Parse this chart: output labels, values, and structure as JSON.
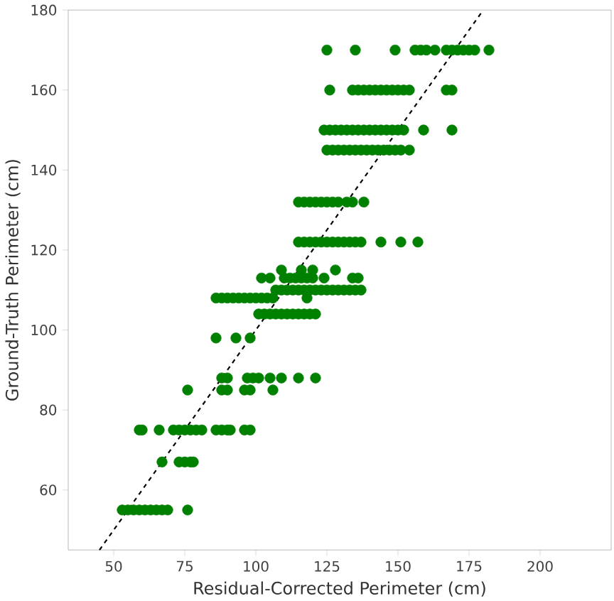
{
  "chart_data": {
    "type": "scatter",
    "xlabel": "Residual-Corrected Perimeter (cm)",
    "ylabel": "Ground-Truth Perimeter (cm)",
    "xlim": [
      34,
      225
    ],
    "ylim": [
      45,
      180
    ],
    "xticks": [
      50,
      75,
      100,
      125,
      150,
      175,
      200
    ],
    "yticks": [
      60,
      80,
      100,
      120,
      140,
      160,
      180
    ],
    "grid": false,
    "series": [
      {
        "color": "#008000",
        "marker": "circle",
        "x": [
          53,
          55,
          57,
          59,
          61,
          63,
          65,
          67,
          69,
          76,
          67,
          73,
          75,
          77,
          78,
          59,
          60,
          66,
          71,
          73,
          75,
          77,
          79,
          81,
          86,
          88,
          90,
          91,
          96,
          98,
          76,
          88,
          90,
          96,
          98,
          106,
          88,
          90,
          97,
          99,
          101,
          105,
          109,
          115,
          121,
          86,
          93,
          98,
          101,
          103,
          105,
          107,
          109,
          111,
          113,
          115,
          117,
          119,
          121,
          86,
          88,
          90,
          92,
          94,
          96,
          98,
          100,
          102,
          104,
          106,
          118,
          107,
          109,
          111,
          113,
          115,
          117,
          119,
          121,
          123,
          125,
          127,
          129,
          131,
          133,
          135,
          137,
          102,
          105,
          110,
          112,
          114,
          116,
          118,
          120,
          124,
          134,
          136,
          109,
          116,
          120,
          128,
          115,
          117,
          119,
          121,
          123,
          125,
          127,
          129,
          131,
          133,
          135,
          137,
          144,
          151,
          157,
          115,
          117,
          119,
          121,
          123,
          125,
          127,
          129,
          132,
          134,
          138,
          125,
          127,
          129,
          131,
          133,
          135,
          137,
          139,
          141,
          143,
          145,
          147,
          149,
          151,
          154,
          124,
          126,
          128,
          130,
          132,
          134,
          136,
          138,
          140,
          142,
          144,
          146,
          148,
          150,
          152,
          159,
          169,
          126,
          134,
          136,
          138,
          140,
          142,
          144,
          146,
          148,
          150,
          152,
          154,
          167,
          169,
          125,
          135,
          149,
          156,
          158,
          160,
          163,
          167,
          169,
          171,
          173,
          175,
          177,
          182
        ],
        "values": [
          55,
          55,
          55,
          55,
          55,
          55,
          55,
          55,
          55,
          55,
          67,
          67,
          67,
          67,
          67,
          75,
          75,
          75,
          75,
          75,
          75,
          75,
          75,
          75,
          75,
          75,
          75,
          75,
          75,
          75,
          85,
          85,
          85,
          85,
          85,
          85,
          88,
          88,
          88,
          88,
          88,
          88,
          88,
          88,
          88,
          98,
          98,
          98,
          104,
          104,
          104,
          104,
          104,
          104,
          104,
          104,
          104,
          104,
          104,
          108,
          108,
          108,
          108,
          108,
          108,
          108,
          108,
          108,
          108,
          108,
          108,
          110,
          110,
          110,
          110,
          110,
          110,
          110,
          110,
          110,
          110,
          110,
          110,
          110,
          110,
          110,
          110,
          113,
          113,
          113,
          113,
          113,
          113,
          113,
          113,
          113,
          113,
          113,
          115,
          115,
          115,
          115,
          122,
          122,
          122,
          122,
          122,
          122,
          122,
          122,
          122,
          122,
          122,
          122,
          122,
          122,
          122,
          132,
          132,
          132,
          132,
          132,
          132,
          132,
          132,
          132,
          132,
          132,
          145,
          145,
          145,
          145,
          145,
          145,
          145,
          145,
          145,
          145,
          145,
          145,
          145,
          145,
          145,
          150,
          150,
          150,
          150,
          150,
          150,
          150,
          150,
          150,
          150,
          150,
          150,
          150,
          150,
          150,
          150,
          150,
          160,
          160,
          160,
          160,
          160,
          160,
          160,
          160,
          160,
          160,
          160,
          160,
          160,
          160,
          170,
          170,
          170,
          170,
          170,
          170,
          170,
          170,
          170,
          170,
          170,
          170,
          170,
          170
        ]
      },
      {
        "type": "line",
        "color": "#000000",
        "line_style": "dashed",
        "marker": "none",
        "x": [
          45,
          180
        ],
        "values": [
          45,
          180
        ]
      }
    ]
  }
}
